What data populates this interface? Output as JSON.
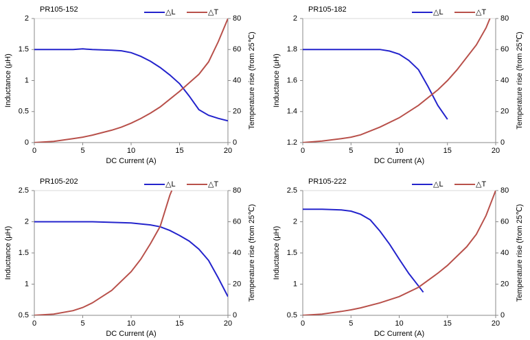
{
  "chart_data": [
    {
      "type": "line",
      "title": "PR105-152",
      "xlabel": "DC Current (A)",
      "ylabel": "Inductance (μH)",
      "y2label": "Temperature rise (from 25℃)",
      "xlim": [
        0,
        20
      ],
      "xticks": [
        0,
        5,
        10,
        15,
        20
      ],
      "ylim": [
        0,
        2
      ],
      "yticks": [
        0,
        0.5,
        1,
        1.5,
        2
      ],
      "y2lim": [
        0,
        80
      ],
      "y2ticks": [
        0,
        20,
        40,
        60,
        80
      ],
      "series": [
        {
          "name": "△L",
          "color": "#2323cc",
          "x": [
            0,
            2,
            4,
            5,
            6,
            8,
            9,
            10,
            11,
            12,
            13,
            14,
            15,
            16,
            17,
            18,
            19,
            20
          ],
          "values": [
            1.5,
            1.5,
            1.5,
            1.51,
            1.5,
            1.49,
            1.48,
            1.45,
            1.39,
            1.31,
            1.21,
            1.09,
            0.95,
            0.75,
            0.53,
            0.44,
            0.39,
            0.35
          ]
        },
        {
          "name": "△T",
          "color": "#b8504a",
          "axis": "y2",
          "x": [
            0,
            2,
            4,
            5,
            6,
            8,
            9,
            10,
            11,
            12,
            13,
            14,
            15,
            16,
            17,
            18,
            19,
            20
          ],
          "values": [
            0,
            0.8,
            2.5,
            3.5,
            4.8,
            8,
            10,
            12.5,
            15.5,
            19,
            23,
            28,
            33,
            38.5,
            44,
            52,
            65,
            80
          ]
        }
      ]
    },
    {
      "type": "line",
      "title": "PR105-182",
      "xlabel": "DC Current (A)",
      "ylabel": "Inductance (μH)",
      "y2label": "Temperature rise (from 25℃)",
      "xlim": [
        0,
        20
      ],
      "xticks": [
        0,
        5,
        10,
        15,
        20
      ],
      "ylim": [
        1.2,
        2
      ],
      "yticks": [
        1.2,
        1.4,
        1.6,
        1.8,
        2
      ],
      "y2lim": [
        0,
        80
      ],
      "y2ticks": [
        0,
        20,
        40,
        60,
        80
      ],
      "series": [
        {
          "name": "△L",
          "color": "#2323cc",
          "x": [
            0,
            2,
            4,
            5,
            6,
            8,
            9,
            10,
            11,
            12,
            13,
            14,
            15
          ],
          "values": [
            1.8,
            1.8,
            1.8,
            1.8,
            1.8,
            1.8,
            1.79,
            1.77,
            1.73,
            1.67,
            1.56,
            1.44,
            1.35
          ]
        },
        {
          "name": "△T",
          "color": "#b8504a",
          "axis": "y2",
          "x": [
            0,
            2,
            4,
            5,
            6,
            8,
            10,
            12,
            14,
            15,
            16,
            18,
            19,
            19.4
          ],
          "values": [
            0,
            1,
            2.5,
            3.5,
            5,
            10,
            16,
            24,
            34,
            40,
            47,
            63,
            74,
            80
          ]
        }
      ]
    },
    {
      "type": "line",
      "title": "PR105-202",
      "xlabel": "DC Current (A)",
      "ylabel": "Inductance (μH)",
      "y2label": "Temperature rise (from 25℃)",
      "xlim": [
        0,
        20
      ],
      "xticks": [
        0,
        5,
        10,
        15,
        20
      ],
      "ylim": [
        0.5,
        2.5
      ],
      "yticks": [
        0.5,
        1,
        1.5,
        2,
        2.5
      ],
      "y2lim": [
        0,
        80
      ],
      "y2ticks": [
        0,
        20,
        40,
        60,
        80
      ],
      "series": [
        {
          "name": "△L",
          "color": "#2323cc",
          "x": [
            0,
            2,
            4,
            5,
            6,
            8,
            10,
            12,
            13,
            14,
            15,
            16,
            17,
            18,
            19,
            20
          ],
          "values": [
            2,
            2,
            2,
            2,
            2,
            1.99,
            1.98,
            1.95,
            1.92,
            1.86,
            1.78,
            1.69,
            1.56,
            1.38,
            1.1,
            0.8
          ]
        },
        {
          "name": "△T",
          "color": "#b8504a",
          "axis": "y2",
          "x": [
            0,
            2,
            4,
            5,
            6,
            8,
            10,
            11,
            12,
            13,
            14,
            14.2
          ],
          "values": [
            0,
            0.8,
            3,
            5,
            8,
            16,
            28,
            36,
            46,
            57,
            77,
            80
          ]
        }
      ]
    },
    {
      "type": "line",
      "title": "PR105-222",
      "xlabel": "DC Current (A)",
      "ylabel": "Inductance (μH)",
      "y2label": "Temperature rise (from 25℃)",
      "xlim": [
        0,
        20
      ],
      "xticks": [
        0,
        5,
        10,
        15,
        20
      ],
      "ylim": [
        0.5,
        2.5
      ],
      "yticks": [
        0.5,
        1,
        1.5,
        2,
        2.5
      ],
      "y2lim": [
        0,
        80
      ],
      "y2ticks": [
        0,
        20,
        40,
        60,
        80
      ],
      "series": [
        {
          "name": "△L",
          "color": "#2323cc",
          "x": [
            0,
            2,
            4,
            5,
            6,
            7,
            8,
            9,
            10,
            11,
            12,
            12.5
          ],
          "values": [
            2.2,
            2.2,
            2.19,
            2.17,
            2.12,
            2.03,
            1.85,
            1.64,
            1.4,
            1.17,
            0.97,
            0.87
          ]
        },
        {
          "name": "△T",
          "color": "#b8504a",
          "axis": "y2",
          "x": [
            0,
            2,
            4,
            5,
            6,
            8,
            10,
            12,
            14,
            15,
            16,
            17,
            18,
            19,
            20
          ],
          "values": [
            0,
            0.8,
            2.5,
            3.5,
            4.8,
            8,
            12,
            18,
            27,
            32,
            38,
            44,
            52,
            64,
            80
          ]
        }
      ]
    }
  ]
}
